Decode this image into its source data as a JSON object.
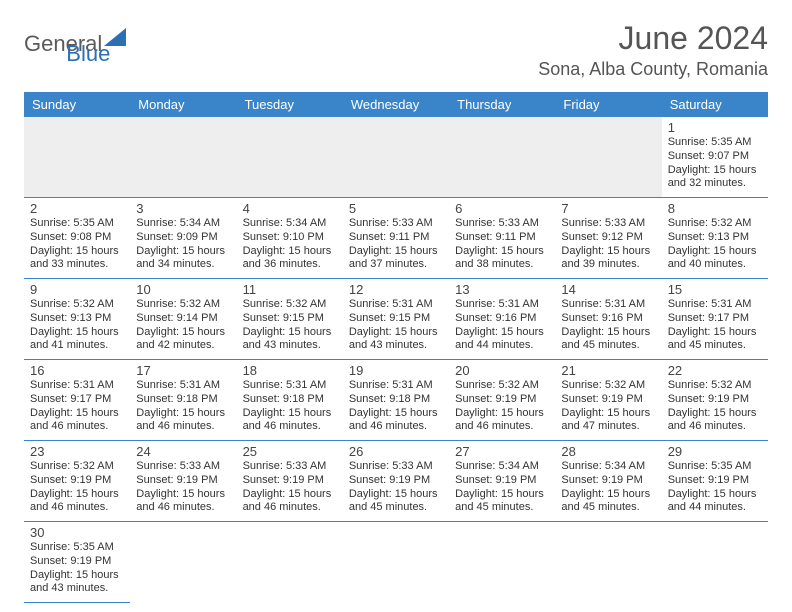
{
  "logo": {
    "general": "General",
    "blue": "Blue"
  },
  "title": "June 2024",
  "location": "Sona, Alba County, Romania",
  "colors": {
    "header_bg": "#3a85c9",
    "header_text": "#ffffff",
    "cell_border": "#3a85c9",
    "empty_bg": "#eeeeee",
    "page_bg": "#ffffff",
    "title_color": "#555",
    "text_color": "#333",
    "logo_general": "#5a5a5a",
    "logo_blue": "#2d6fb5"
  },
  "weekdays": [
    "Sunday",
    "Monday",
    "Tuesday",
    "Wednesday",
    "Thursday",
    "Friday",
    "Saturday"
  ],
  "first_weekday_index": 6,
  "days": [
    {
      "n": 1,
      "sunrise": "5:35 AM",
      "sunset": "9:07 PM",
      "daylight": "15 hours and 32 minutes."
    },
    {
      "n": 2,
      "sunrise": "5:35 AM",
      "sunset": "9:08 PM",
      "daylight": "15 hours and 33 minutes."
    },
    {
      "n": 3,
      "sunrise": "5:34 AM",
      "sunset": "9:09 PM",
      "daylight": "15 hours and 34 minutes."
    },
    {
      "n": 4,
      "sunrise": "5:34 AM",
      "sunset": "9:10 PM",
      "daylight": "15 hours and 36 minutes."
    },
    {
      "n": 5,
      "sunrise": "5:33 AM",
      "sunset": "9:11 PM",
      "daylight": "15 hours and 37 minutes."
    },
    {
      "n": 6,
      "sunrise": "5:33 AM",
      "sunset": "9:11 PM",
      "daylight": "15 hours and 38 minutes."
    },
    {
      "n": 7,
      "sunrise": "5:33 AM",
      "sunset": "9:12 PM",
      "daylight": "15 hours and 39 minutes."
    },
    {
      "n": 8,
      "sunrise": "5:32 AM",
      "sunset": "9:13 PM",
      "daylight": "15 hours and 40 minutes."
    },
    {
      "n": 9,
      "sunrise": "5:32 AM",
      "sunset": "9:13 PM",
      "daylight": "15 hours and 41 minutes."
    },
    {
      "n": 10,
      "sunrise": "5:32 AM",
      "sunset": "9:14 PM",
      "daylight": "15 hours and 42 minutes."
    },
    {
      "n": 11,
      "sunrise": "5:32 AM",
      "sunset": "9:15 PM",
      "daylight": "15 hours and 43 minutes."
    },
    {
      "n": 12,
      "sunrise": "5:31 AM",
      "sunset": "9:15 PM",
      "daylight": "15 hours and 43 minutes."
    },
    {
      "n": 13,
      "sunrise": "5:31 AM",
      "sunset": "9:16 PM",
      "daylight": "15 hours and 44 minutes."
    },
    {
      "n": 14,
      "sunrise": "5:31 AM",
      "sunset": "9:16 PM",
      "daylight": "15 hours and 45 minutes."
    },
    {
      "n": 15,
      "sunrise": "5:31 AM",
      "sunset": "9:17 PM",
      "daylight": "15 hours and 45 minutes."
    },
    {
      "n": 16,
      "sunrise": "5:31 AM",
      "sunset": "9:17 PM",
      "daylight": "15 hours and 46 minutes."
    },
    {
      "n": 17,
      "sunrise": "5:31 AM",
      "sunset": "9:18 PM",
      "daylight": "15 hours and 46 minutes."
    },
    {
      "n": 18,
      "sunrise": "5:31 AM",
      "sunset": "9:18 PM",
      "daylight": "15 hours and 46 minutes."
    },
    {
      "n": 19,
      "sunrise": "5:31 AM",
      "sunset": "9:18 PM",
      "daylight": "15 hours and 46 minutes."
    },
    {
      "n": 20,
      "sunrise": "5:32 AM",
      "sunset": "9:19 PM",
      "daylight": "15 hours and 46 minutes."
    },
    {
      "n": 21,
      "sunrise": "5:32 AM",
      "sunset": "9:19 PM",
      "daylight": "15 hours and 47 minutes."
    },
    {
      "n": 22,
      "sunrise": "5:32 AM",
      "sunset": "9:19 PM",
      "daylight": "15 hours and 46 minutes."
    },
    {
      "n": 23,
      "sunrise": "5:32 AM",
      "sunset": "9:19 PM",
      "daylight": "15 hours and 46 minutes."
    },
    {
      "n": 24,
      "sunrise": "5:33 AM",
      "sunset": "9:19 PM",
      "daylight": "15 hours and 46 minutes."
    },
    {
      "n": 25,
      "sunrise": "5:33 AM",
      "sunset": "9:19 PM",
      "daylight": "15 hours and 46 minutes."
    },
    {
      "n": 26,
      "sunrise": "5:33 AM",
      "sunset": "9:19 PM",
      "daylight": "15 hours and 45 minutes."
    },
    {
      "n": 27,
      "sunrise": "5:34 AM",
      "sunset": "9:19 PM",
      "daylight": "15 hours and 45 minutes."
    },
    {
      "n": 28,
      "sunrise": "5:34 AM",
      "sunset": "9:19 PM",
      "daylight": "15 hours and 45 minutes."
    },
    {
      "n": 29,
      "sunrise": "5:35 AM",
      "sunset": "9:19 PM",
      "daylight": "15 hours and 44 minutes."
    },
    {
      "n": 30,
      "sunrise": "5:35 AM",
      "sunset": "9:19 PM",
      "daylight": "15 hours and 43 minutes."
    }
  ],
  "labels": {
    "sunrise": "Sunrise:",
    "sunset": "Sunset:",
    "daylight": "Daylight:"
  }
}
